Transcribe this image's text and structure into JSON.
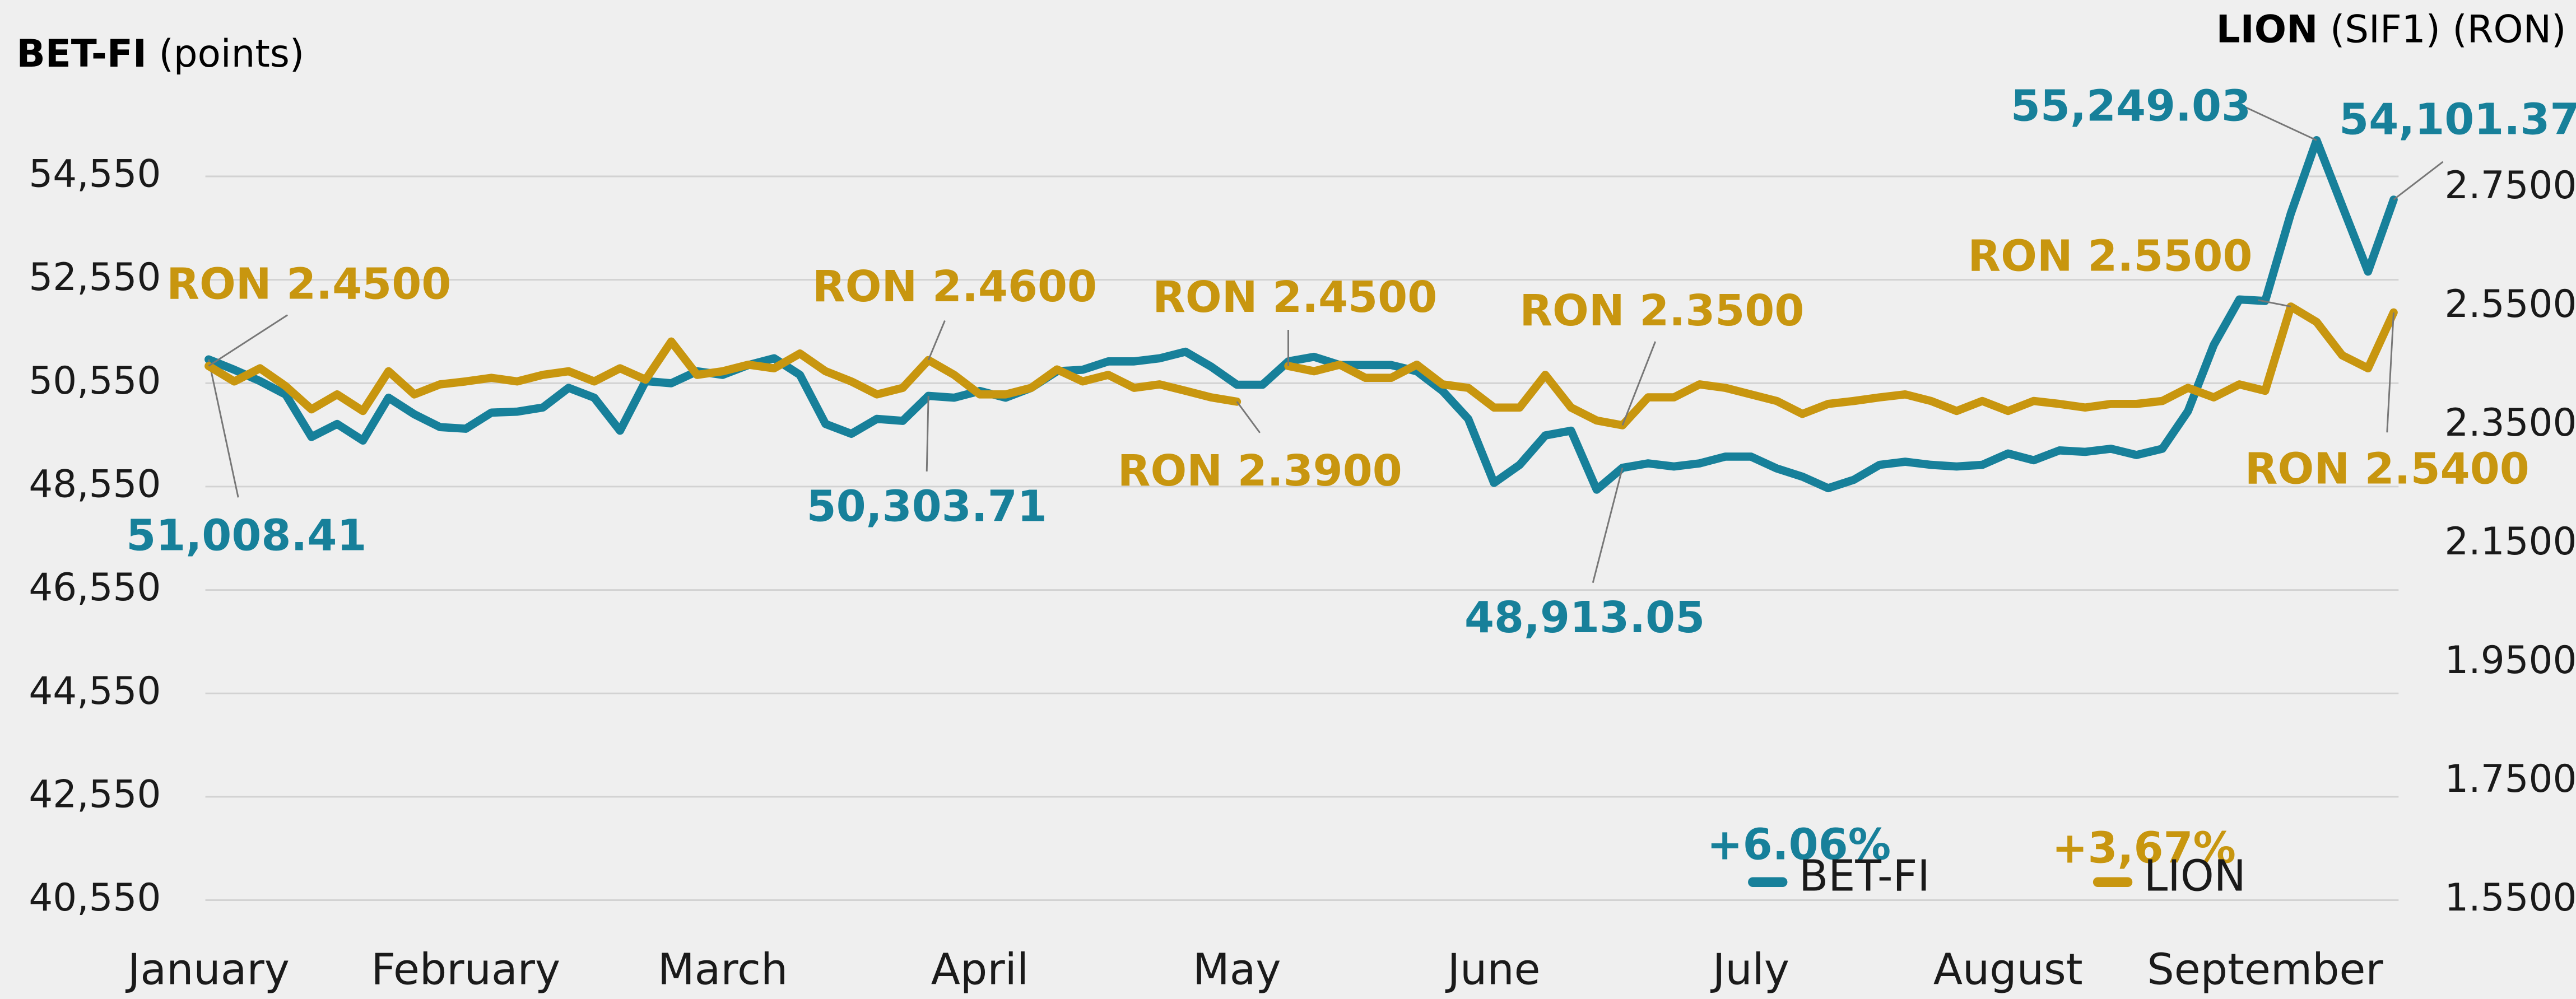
{
  "chart_data": {
    "type": "line",
    "ylabel": [
      "BET-FI",
      "(points)"
    ],
    "y2label": [
      "LION",
      "(SIF1) (RON)"
    ],
    "categories": [
      "January",
      null,
      null,
      null,
      null,
      null,
      null,
      null,
      null,
      null,
      "February",
      null,
      null,
      null,
      null,
      null,
      null,
      null,
      null,
      null,
      "March",
      null,
      null,
      null,
      null,
      null,
      null,
      null,
      null,
      null,
      "April",
      null,
      null,
      null,
      null,
      null,
      null,
      null,
      null,
      null,
      "May",
      null,
      null,
      null,
      null,
      null,
      null,
      null,
      null,
      null,
      "June",
      null,
      null,
      null,
      null,
      null,
      null,
      null,
      null,
      null,
      "July",
      null,
      null,
      null,
      null,
      null,
      null,
      null,
      null,
      null,
      "August",
      null,
      null,
      null,
      null,
      null,
      null,
      null,
      null,
      null,
      "September",
      null,
      null,
      null,
      null,
      null
    ],
    "ylim": [
      40550,
      56050
    ],
    "yticks": [
      {
        "value": 40550,
        "label": "40,550"
      },
      {
        "value": 42550,
        "label": "42,550"
      },
      {
        "value": 44550,
        "label": "44,550"
      },
      {
        "value": 46550,
        "label": "46,550"
      },
      {
        "value": 48550,
        "label": "48,550"
      },
      {
        "value": 50550,
        "label": "50,550"
      },
      {
        "value": 52550,
        "label": "52,550"
      },
      {
        "value": 54550,
        "label": "54,550"
      }
    ],
    "y2lim": [
      1.55,
      2.9
    ],
    "y2ticks": [
      {
        "value": 1.55,
        "label": "1.5500"
      },
      {
        "value": 1.75,
        "label": "1.7500"
      },
      {
        "value": 1.95,
        "label": "1.9500"
      },
      {
        "value": 2.15,
        "label": "2.1500"
      },
      {
        "value": 2.35,
        "label": "2.3500"
      },
      {
        "value": 2.55,
        "label": "2.5500"
      },
      {
        "value": 2.75,
        "label": "2.7500"
      }
    ],
    "grid": true,
    "series": [
      {
        "name": "BET-FI",
        "color": "#17809a",
        "change": "+6.06%",
        "values": [
          51008.41,
          50810,
          50590,
          50330,
          49510,
          49760,
          49440,
          50270,
          49950,
          49700,
          49670,
          49980,
          50000,
          50080,
          50460,
          50270,
          49630,
          50590,
          50550,
          50780,
          50710,
          50900,
          51030,
          50710,
          49760,
          49570,
          49860,
          49820,
          50303.71,
          50270,
          50400,
          50270,
          50460,
          50780,
          50810,
          50970,
          50970,
          51030,
          51160,
          50870,
          50520,
          50520,
          50970,
          51060,
          50900,
          50900,
          50900,
          50780,
          50400,
          49860,
          48620,
          48970,
          49540,
          49630,
          48490,
          48913.05,
          49000,
          48940,
          49000,
          49130,
          49130,
          48900,
          48740,
          48520,
          48680,
          48970,
          49030,
          48970,
          48940,
          48970,
          49190,
          49060,
          49250,
          49220,
          49280,
          49160,
          49280,
          50010,
          51290,
          52170,
          52140,
          53830,
          55249.03,
          53980,
          52710,
          54101.37
        ],
        "value_labels": [
          "51,008.41",
          null,
          null,
          null,
          null,
          null,
          null,
          null,
          null,
          null,
          null,
          null,
          null,
          null,
          null,
          null,
          null,
          null,
          null,
          null,
          null,
          null,
          null,
          null,
          null,
          null,
          null,
          null,
          "50,303.71",
          null,
          null,
          null,
          null,
          null,
          null,
          null,
          null,
          null,
          null,
          null,
          null,
          null,
          null,
          null,
          null,
          null,
          null,
          null,
          null,
          null,
          null,
          null,
          null,
          null,
          null,
          "48,913.05",
          null,
          null,
          null,
          null,
          null,
          null,
          null,
          null,
          null,
          null,
          null,
          null,
          null,
          null,
          null,
          null,
          null,
          null,
          null,
          null,
          null,
          null,
          null,
          null,
          null,
          null,
          "55,249.03",
          null,
          null,
          "54,101.37"
        ]
      },
      {
        "name": "LION",
        "color": "#c8960f",
        "change": "+3,67%",
        "axis": "y2",
        "values": [
          2.45,
          2.424,
          2.446,
          2.416,
          2.377,
          2.402,
          2.374,
          2.441,
          2.402,
          2.419,
          2.424,
          2.43,
          2.424,
          2.435,
          2.441,
          2.424,
          2.446,
          2.427,
          2.491,
          2.435,
          2.441,
          2.452,
          2.446,
          2.471,
          2.441,
          2.424,
          2.402,
          2.413,
          2.46,
          2.435,
          2.402,
          2.402,
          2.413,
          2.444,
          2.424,
          2.435,
          2.413,
          2.419,
          2.408,
          2.397,
          2.39,
          null,
          2.45,
          2.441,
          2.452,
          2.43,
          2.43,
          2.452,
          2.419,
          2.413,
          2.38,
          2.38,
          2.435,
          2.38,
          2.358,
          2.35,
          2.397,
          2.397,
          2.419,
          2.413,
          2.402,
          2.391,
          2.369,
          2.386,
          2.391,
          2.397,
          2.402,
          2.391,
          2.374,
          2.391,
          2.374,
          2.391,
          2.386,
          2.38,
          2.386,
          2.386,
          2.391,
          2.413,
          2.397,
          2.419,
          2.408,
          2.55,
          2.524,
          2.468,
          2.446,
          2.54
        ],
        "value_labels": [
          "RON 2.4500",
          null,
          null,
          null,
          null,
          null,
          null,
          null,
          null,
          null,
          null,
          null,
          null,
          null,
          null,
          null,
          null,
          null,
          null,
          null,
          null,
          null,
          null,
          null,
          null,
          null,
          null,
          null,
          "RON 2.4600",
          null,
          null,
          null,
          null,
          null,
          null,
          null,
          null,
          null,
          null,
          null,
          "RON 2.3900",
          null,
          "RON 2.4500",
          null,
          null,
          null,
          null,
          null,
          null,
          null,
          null,
          null,
          null,
          null,
          null,
          "RON 2.3500",
          null,
          null,
          null,
          null,
          null,
          null,
          null,
          null,
          null,
          null,
          null,
          null,
          null,
          null,
          null,
          null,
          null,
          null,
          null,
          null,
          null,
          null,
          null,
          null,
          null,
          "RON 2.5500",
          null,
          null,
          null,
          "RON 2.5400"
        ]
      }
    ]
  }
}
